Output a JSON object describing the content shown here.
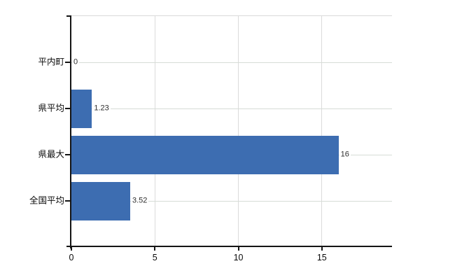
{
  "chart_data": {
    "type": "bar",
    "orientation": "horizontal",
    "categories": [
      "平内町",
      "県平均",
      "県最大",
      "全国平均"
    ],
    "values": [
      0,
      1.23,
      16,
      3.52
    ],
    "value_labels": [
      "0",
      "1.23",
      "16",
      "3.52"
    ],
    "x_tick_values": [
      0,
      5,
      10,
      15
    ],
    "x_tick_labels": [
      "0",
      "5",
      "10",
      "15"
    ],
    "xlim": [
      0,
      19.2
    ],
    "grid": true,
    "legend": false,
    "bar_color": "#3d6db1",
    "h_grid_color": "#d6dcd6",
    "v_grid_color": "#dbdbdb",
    "axis_color": "#141414",
    "value_label_color": "#2e2e2e",
    "tick_label_color": "#0a0a0a"
  }
}
